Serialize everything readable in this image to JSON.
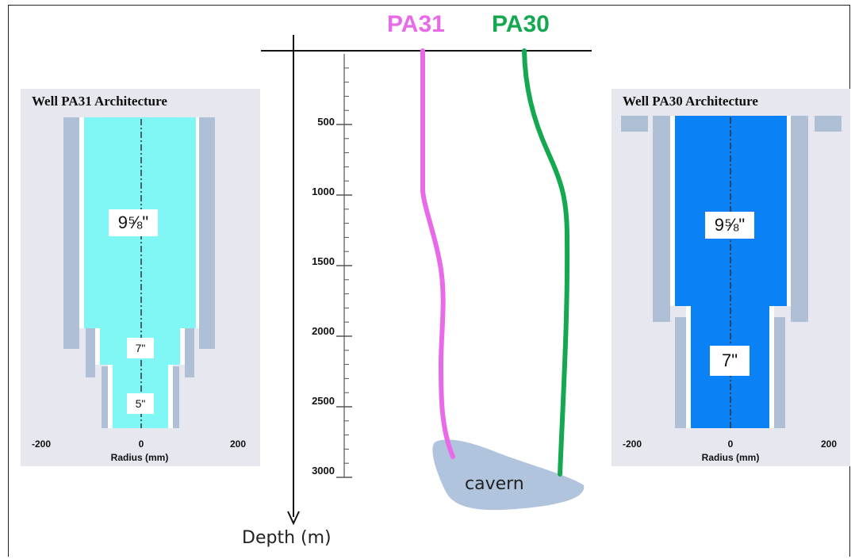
{
  "left_panel": {
    "title": "Well PA31 Architecture",
    "casing_labels": [
      "9⅝\"",
      "7\"",
      "5\""
    ],
    "ticks": [
      "-200",
      "0",
      "200"
    ],
    "axis_label": "Radius (mm)",
    "fill_color": "#80f7f5",
    "casing_color": "#aebfd6"
  },
  "right_panel": {
    "title": "Well PA30 Architecture",
    "casing_labels": [
      "9⅝\"",
      "7\""
    ],
    "ticks": [
      "-200",
      "0",
      "200"
    ],
    "axis_label": "Radius (mm)",
    "fill_color": "#0a82f5",
    "casing_color": "#aebfd6"
  },
  "center": {
    "wells": [
      {
        "name": "PA31",
        "color": "#e96ae8"
      },
      {
        "name": "PA30",
        "color": "#14a850"
      }
    ],
    "depth_ticks": [
      "500",
      "1000",
      "1500",
      "2000",
      "2500",
      "3000"
    ],
    "depth_label": "Depth (m)",
    "cavern_label": "cavern",
    "cavern_color": "#b0c4de"
  }
}
